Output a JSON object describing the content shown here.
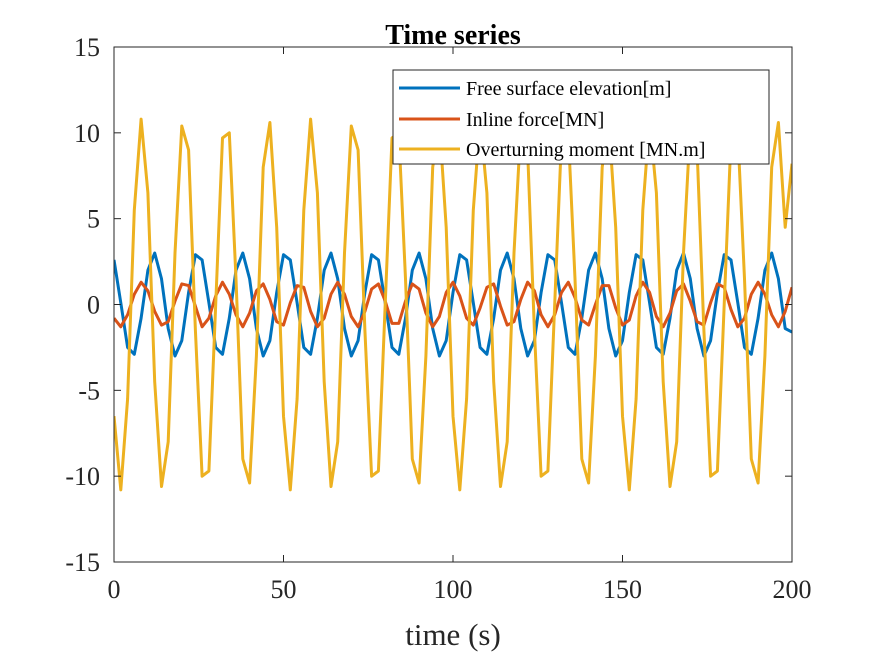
{
  "chart_data": {
    "type": "line",
    "title": "Time series",
    "xlabel": "time (s)",
    "ylabel": "",
    "xlim": [
      0,
      200
    ],
    "ylim": [
      -15,
      15
    ],
    "xticks": [
      0,
      50,
      100,
      150,
      200
    ],
    "yticks": [
      -15,
      -10,
      -5,
      0,
      5,
      10,
      15
    ],
    "xtick_labels": [
      "0",
      "50",
      "100",
      "150",
      "200"
    ],
    "ytick_labels": [
      "-15",
      "-10",
      "-5",
      "0",
      "5",
      "10",
      "15"
    ],
    "grid": false,
    "legend_position": "top-right",
    "series": [
      {
        "name": "Free surface elevation[m]",
        "color": "#0072BD",
        "x": [
          0,
          2,
          4,
          6,
          8,
          10,
          12,
          14,
          16,
          18,
          20,
          22,
          24,
          26,
          28,
          30,
          32,
          34,
          36,
          38,
          40,
          42,
          44,
          46,
          48,
          50,
          52,
          54,
          56,
          58,
          60,
          62,
          64,
          66,
          68,
          70,
          72,
          74,
          76,
          78,
          80,
          82,
          84,
          86,
          88,
          90,
          92,
          94,
          96,
          98,
          100,
          102,
          104,
          106,
          108,
          110,
          112,
          114,
          116,
          118,
          120,
          122,
          124,
          126,
          128,
          130,
          132,
          134,
          136,
          138,
          140,
          142,
          144,
          146,
          148,
          150,
          152,
          154,
          156,
          158,
          160,
          162,
          164,
          166,
          168,
          170,
          172,
          174,
          176,
          178,
          180,
          182,
          184,
          186,
          188,
          190,
          192,
          194,
          196,
          198,
          200
        ],
        "y": [
          2.6,
          0.1,
          -2.5,
          -2.9,
          -0.8,
          2.0,
          3.0,
          1.5,
          -1.4,
          -3.0,
          -2.1,
          0.7,
          2.9,
          2.6,
          0.1,
          -2.5,
          -2.9,
          -0.8,
          2.0,
          3.0,
          1.5,
          -1.4,
          -3.0,
          -2.1,
          0.7,
          2.9,
          2.6,
          0.1,
          -2.5,
          -2.9,
          -0.8,
          2.0,
          3.0,
          1.5,
          -1.4,
          -3.0,
          -2.1,
          0.7,
          2.9,
          2.6,
          0.1,
          -2.5,
          -2.9,
          -0.8,
          2.0,
          3.0,
          1.5,
          -1.4,
          -3.0,
          -2.1,
          0.7,
          2.9,
          2.6,
          0.1,
          -2.5,
          -2.9,
          -0.8,
          2.0,
          3.0,
          1.5,
          -1.4,
          -3.0,
          -2.1,
          0.7,
          2.9,
          2.6,
          0.1,
          -2.5,
          -2.9,
          -0.8,
          2.0,
          3.0,
          1.5,
          -1.4,
          -3.0,
          -2.1,
          0.7,
          2.9,
          2.6,
          0.1,
          -2.5,
          -2.9,
          -0.8,
          2.0,
          3.0,
          1.5,
          -1.4,
          -3.0,
          -2.1,
          0.7,
          2.9,
          2.6,
          0.1,
          -2.5,
          -2.9,
          -0.8,
          2.0,
          3.0,
          1.5,
          -1.4,
          -1.6
        ]
      },
      {
        "name": "Inline force[MN]",
        "color": "#D95319",
        "x": [
          0,
          2,
          4,
          6,
          8,
          10,
          12,
          14,
          16,
          18,
          20,
          22,
          24,
          26,
          28,
          30,
          32,
          34,
          36,
          38,
          40,
          42,
          44,
          46,
          48,
          50,
          52,
          54,
          56,
          58,
          60,
          62,
          64,
          66,
          68,
          70,
          72,
          74,
          76,
          78,
          80,
          82,
          84,
          86,
          88,
          90,
          92,
          94,
          96,
          98,
          100,
          102,
          104,
          106,
          108,
          110,
          112,
          114,
          116,
          118,
          120,
          122,
          124,
          126,
          128,
          130,
          132,
          134,
          136,
          138,
          140,
          142,
          144,
          146,
          148,
          150,
          152,
          154,
          156,
          158,
          160,
          162,
          164,
          166,
          168,
          170,
          172,
          174,
          176,
          178,
          180,
          182,
          184,
          186,
          188,
          190,
          192,
          194,
          196,
          198,
          200
        ],
        "y": [
          -0.8,
          -1.3,
          -0.6,
          0.6,
          1.3,
          0.8,
          -0.4,
          -1.2,
          -1.0,
          0.2,
          1.2,
          1.1,
          -0.1,
          -1.3,
          -0.8,
          0.5,
          1.3,
          0.6,
          -0.6,
          -1.3,
          -0.5,
          0.8,
          1.2,
          0.3,
          -1.0,
          -1.2,
          0.1,
          1.1,
          1.0,
          -0.4,
          -1.3,
          -0.8,
          0.6,
          1.3,
          0.6,
          -0.7,
          -1.3,
          -0.4,
          0.9,
          1.2,
          0.2,
          -1.1,
          -1.1,
          0.2,
          1.2,
          0.9,
          -0.5,
          -1.3,
          -0.7,
          0.7,
          1.3,
          0.5,
          -0.8,
          -1.2,
          -0.2,
          1.0,
          1.2,
          -0.1,
          -1.2,
          -1.0,
          0.3,
          1.3,
          0.8,
          -0.6,
          -1.3,
          -0.6,
          0.7,
          1.3,
          0.4,
          -0.9,
          -1.2,
          0.0,
          1.1,
          1.1,
          -0.2,
          -1.2,
          -0.9,
          0.5,
          1.3,
          0.7,
          -0.7,
          -1.3,
          -0.5,
          0.8,
          1.2,
          0.2,
          -1.0,
          -1.2,
          0.1,
          1.2,
          1.0,
          -0.3,
          -1.3,
          -0.8,
          0.6,
          1.3,
          0.6,
          -0.6,
          -1.3,
          -0.4,
          1.0
        ]
      },
      {
        "name": "Overturning moment [MN.m]",
        "color": "#EDB120",
        "x": [
          0,
          2,
          4,
          6,
          8,
          10,
          12,
          14,
          16,
          18,
          20,
          22,
          24,
          26,
          28,
          30,
          32,
          34,
          36,
          38,
          40,
          42,
          44,
          46,
          48,
          50,
          52,
          54,
          56,
          58,
          60,
          62,
          64,
          66,
          68,
          70,
          72,
          74,
          76,
          78,
          80,
          82,
          84,
          86,
          88,
          90,
          92,
          94,
          96,
          98,
          100,
          102,
          104,
          106,
          108,
          110,
          112,
          114,
          116,
          118,
          120,
          122,
          124,
          126,
          128,
          130,
          132,
          134,
          136,
          138,
          140,
          142,
          144,
          146,
          148,
          150,
          152,
          154,
          156,
          158,
          160,
          162,
          164,
          166,
          168,
          170,
          172,
          174,
          176,
          178,
          180,
          182,
          184,
          186,
          188,
          190,
          192,
          194,
          196,
          198,
          200
        ],
        "y": [
          -6.5,
          -10.8,
          -5.5,
          5.5,
          10.8,
          6.5,
          -4.5,
          -10.6,
          -8.0,
          3.0,
          10.4,
          9.0,
          -1.5,
          -10.0,
          -9.7,
          0.0,
          9.7,
          10.0,
          1.5,
          -9.0,
          -10.4,
          -3.0,
          8.0,
          10.6,
          4.5,
          -6.5,
          -10.8,
          -5.5,
          5.5,
          10.8,
          6.5,
          -4.5,
          -10.6,
          -8.0,
          3.0,
          10.4,
          9.0,
          -1.5,
          -10.0,
          -9.7,
          0.0,
          9.7,
          10.0,
          1.5,
          -9.0,
          -10.4,
          -3.0,
          8.0,
          10.6,
          4.5,
          -6.5,
          -10.8,
          -5.5,
          5.5,
          10.8,
          6.5,
          -4.5,
          -10.6,
          -8.0,
          3.0,
          10.4,
          9.0,
          -1.5,
          -10.0,
          -9.7,
          0.0,
          9.7,
          10.0,
          1.5,
          -9.0,
          -10.4,
          -3.0,
          8.0,
          10.6,
          4.5,
          -6.5,
          -10.8,
          -5.5,
          5.5,
          10.8,
          6.5,
          -4.5,
          -10.6,
          -8.0,
          3.0,
          10.4,
          9.0,
          -1.5,
          -10.0,
          -9.7,
          0.0,
          9.7,
          10.0,
          1.5,
          -9.0,
          -10.4,
          -3.0,
          8.0,
          10.6,
          4.5,
          8.2
        ]
      }
    ]
  }
}
